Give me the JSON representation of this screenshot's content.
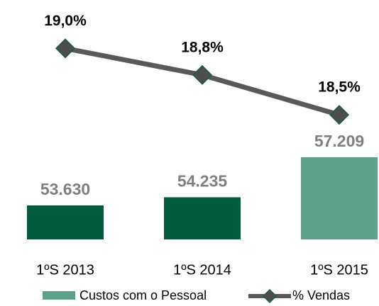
{
  "chart_data": {
    "type": "bar_line",
    "categories": [
      "1ºS 2013",
      "1ºS 2014",
      "1ºS 2015"
    ],
    "series": [
      {
        "name": "Custos com o Pessoal",
        "type": "bar",
        "color": "#5fa08a",
        "colors": [
          "#005a3c",
          "#005a3c",
          "#5fa08a"
        ],
        "values": [
          53630,
          54235,
          57209
        ],
        "value_labels": [
          "53.630",
          "54.235",
          "57.209"
        ]
      },
      {
        "name": "% Vendas",
        "type": "line",
        "axis": "y2",
        "color": "#595959",
        "marker_color": "#4d4d4d",
        "values": [
          19.0,
          18.8,
          18.5
        ],
        "value_labels": [
          "19,0%",
          "18,8%",
          "18,5%"
        ]
      }
    ],
    "ylim": [
      51100,
      58000
    ],
    "y2lim": [
      18.0,
      19.3
    ],
    "legend": "bottom"
  }
}
